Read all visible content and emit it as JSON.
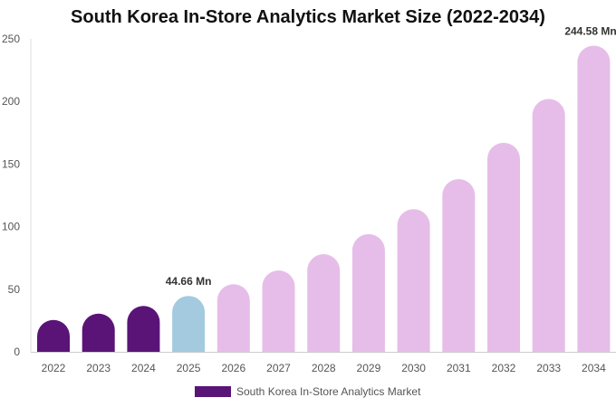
{
  "chart_data": {
    "type": "bar",
    "title": "South Korea In-Store Analytics Market Size (2022-2034)",
    "categories": [
      "2022",
      "2023",
      "2024",
      "2025",
      "2026",
      "2027",
      "2028",
      "2029",
      "2030",
      "2031",
      "2032",
      "2033",
      "2034"
    ],
    "series": [
      {
        "name": "South Korea In-Store Analytics Market",
        "values": [
          25.5,
          30.5,
          36.7,
          44.66,
          54.0,
          65.0,
          78.0,
          94.0,
          114.0,
          138.0,
          167.0,
          202.0,
          244.58
        ]
      }
    ],
    "ylim": [
      0,
      250
    ],
    "yticks": [
      0,
      50,
      100,
      150,
      200,
      250
    ],
    "data_labels": [
      {
        "index": 3,
        "text": "44.66 Mn"
      },
      {
        "index": 12,
        "text": "244.58 Mn"
      }
    ],
    "colors": {
      "historical": "#5a1478",
      "base": "#a3cadf",
      "forecast": "#e6bde8",
      "legend_swatch": "#5a1478"
    },
    "bar_color_groups": [
      "historical",
      "historical",
      "historical",
      "base",
      "forecast",
      "forecast",
      "forecast",
      "forecast",
      "forecast",
      "forecast",
      "forecast",
      "forecast",
      "forecast"
    ],
    "legend_position": "bottom-center",
    "grid": false
  }
}
